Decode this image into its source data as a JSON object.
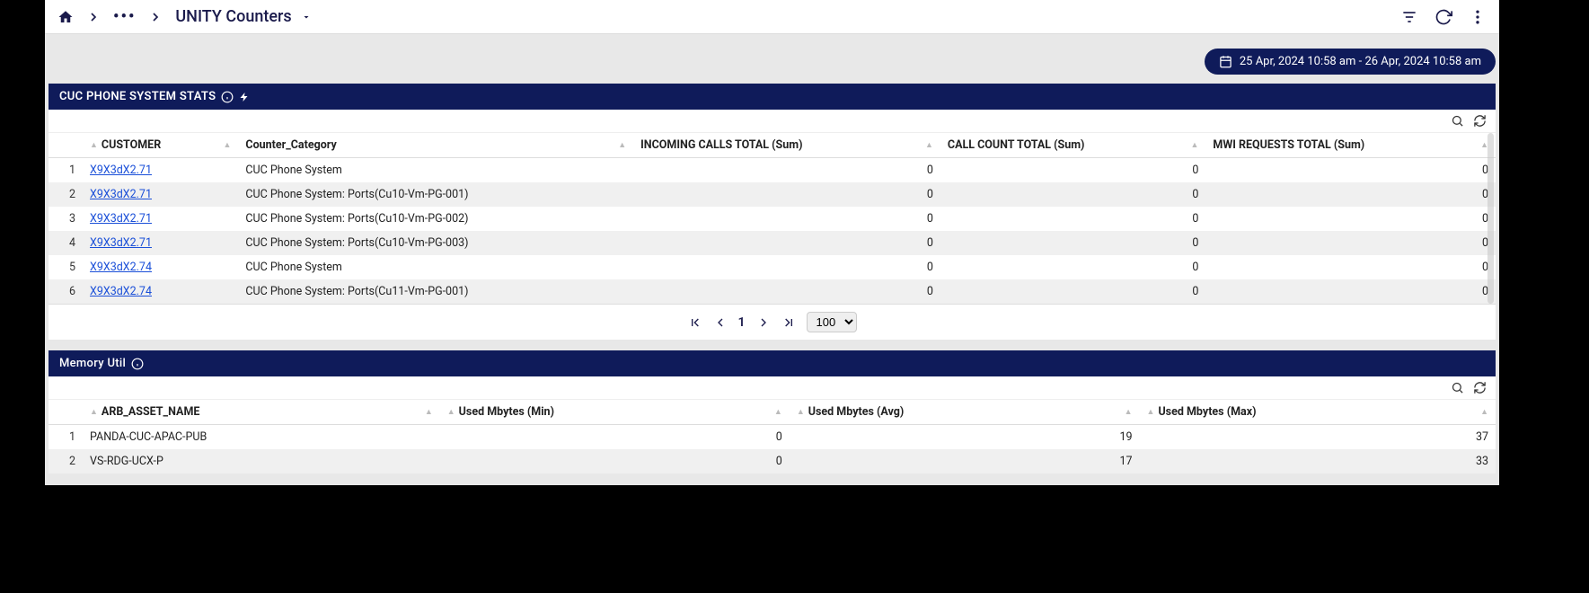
{
  "colors": {
    "header_bg": "#0f1b5a",
    "header_text": "#ffffff",
    "link": "#1a4fd8",
    "row_alt": "#f0f0f0",
    "app_bg": "#e8e8e8",
    "frame_bg": "#000000"
  },
  "breadcrumb": {
    "title": "UNITY Counters"
  },
  "date_range": "25 Apr, 2024 10:58 am - 26 Apr, 2024 10:58 am",
  "panel1": {
    "title": "CUC PHONE SYSTEM STATS",
    "columns": [
      "CUSTOMER",
      "Counter_Category",
      "INCOMING CALLS TOTAL (Sum)",
      "CALL COUNT TOTAL (Sum)",
      "MWI REQUESTS TOTAL (Sum)"
    ],
    "rows": [
      {
        "n": "1",
        "customer": "X9X3dX2.71",
        "cat": "CUC Phone System",
        "c1": "",
        "c2": "0",
        "c3": "0",
        "c4": "0"
      },
      {
        "n": "2",
        "customer": "X9X3dX2.71",
        "cat": "CUC Phone System: Ports(Cu10-Vm-PG-001)",
        "c1": "",
        "c2": "0",
        "c3": "0",
        "c4": "0"
      },
      {
        "n": "3",
        "customer": "X9X3dX2.71",
        "cat": "CUC Phone System: Ports(Cu10-Vm-PG-002)",
        "c1": "",
        "c2": "0",
        "c3": "0",
        "c4": "0"
      },
      {
        "n": "4",
        "customer": "X9X3dX2.71",
        "cat": "CUC Phone System: Ports(Cu10-Vm-PG-003)",
        "c1": "",
        "c2": "0",
        "c3": "0",
        "c4": "0"
      },
      {
        "n": "5",
        "customer": "X9X3dX2.74",
        "cat": "CUC Phone System",
        "c1": "",
        "c2": "0",
        "c3": "0",
        "c4": "0"
      },
      {
        "n": "6",
        "customer": "X9X3dX2.74",
        "cat": "CUC Phone System: Ports(Cu11-Vm-PG-001)",
        "c1": "",
        "c2": "0",
        "c3": "0",
        "c4": "0"
      }
    ],
    "pager": {
      "page": "1",
      "size": "100"
    }
  },
  "panel2": {
    "title": "Memory Util",
    "columns": [
      "ARB_ASSET_NAME",
      "Used Mbytes (Min)",
      "Used Mbytes (Avg)",
      "Used Mbytes (Max)"
    ],
    "rows": [
      {
        "n": "1",
        "name": "PANDA-CUC-APAC-PUB",
        "min": "0",
        "avg": "19",
        "max": "37"
      },
      {
        "n": "2",
        "name": "VS-RDG-UCX-P",
        "min": "0",
        "avg": "17",
        "max": "33"
      }
    ]
  }
}
